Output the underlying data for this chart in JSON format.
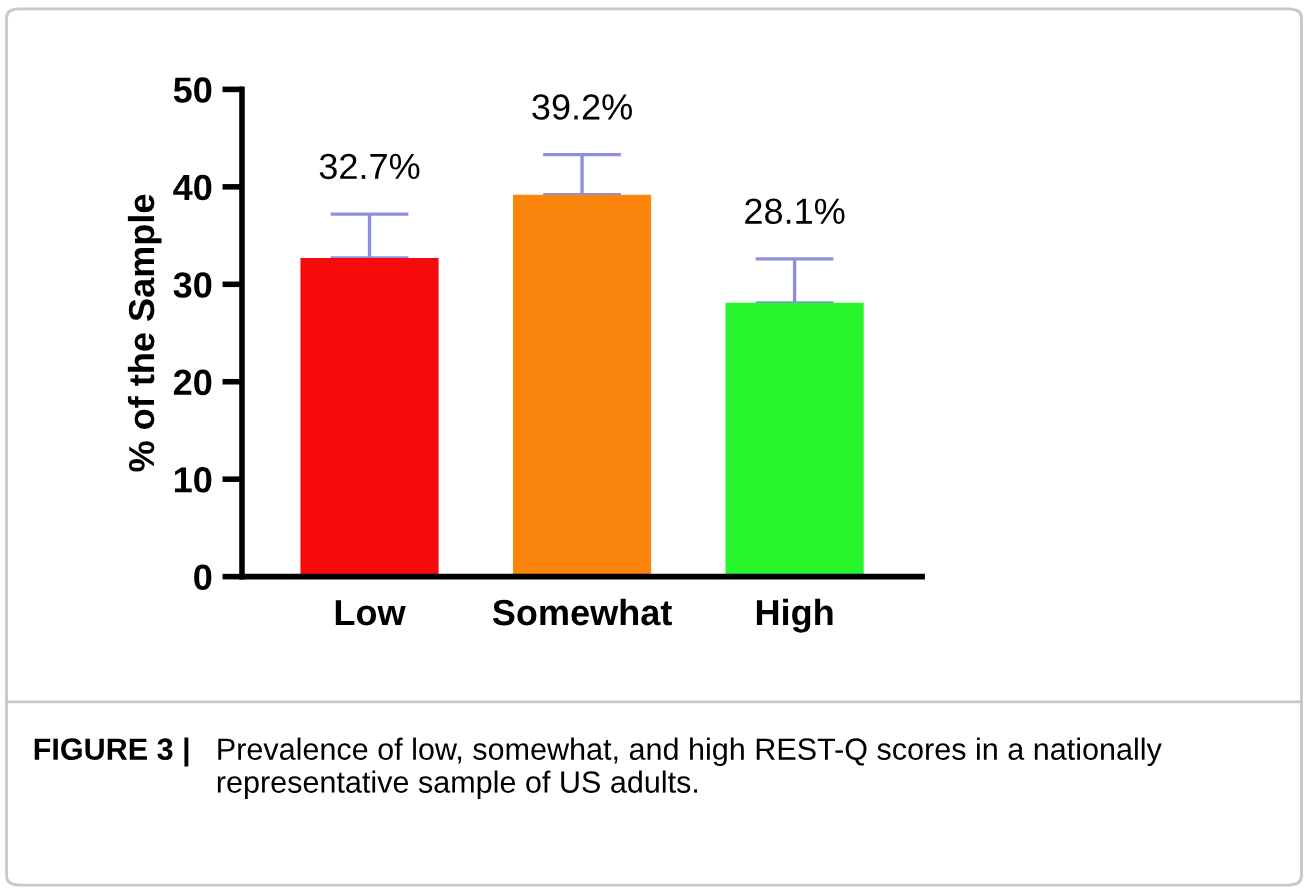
{
  "chart_data": {
    "type": "bar",
    "categories": [
      "Low",
      "Somewhat",
      "High"
    ],
    "values": [
      32.7,
      39.2,
      28.1
    ],
    "colors": [
      "#f70a0a",
      "#fb840c",
      "#27f52b"
    ],
    "errors": [
      [
        32.7,
        37.2
      ],
      [
        39.2,
        43.3
      ],
      [
        28.1,
        32.6
      ]
    ],
    "value_labels": [
      "32.7%",
      "39.2%",
      "28.1%"
    ],
    "ylabel": "% of the Sample",
    "ylim": [
      0,
      50
    ],
    "yticks": [
      0,
      10,
      20,
      30,
      40,
      50
    ],
    "grid": false,
    "legend": false,
    "annotations": [
      "FIGURE 3 | Prevalence of low, somewhat, and high REST-Q scores in a nationally representative sample of US adults."
    ]
  }
}
